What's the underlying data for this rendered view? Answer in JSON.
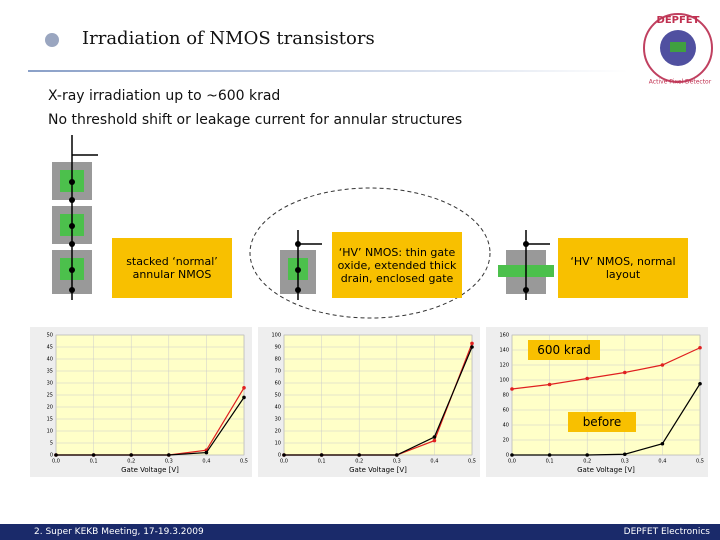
{
  "header": {
    "title": "Irradiation of NMOS transistors"
  },
  "logo": {
    "name": "DEPFET",
    "subtitle": "Active Pixel Detector"
  },
  "bullets": [
    "X-ray irradiation up to ~600 krad",
    "No threshold shift or leakage current for annular structures"
  ],
  "labels": [
    "stacked ‘normal’ annular NMOS",
    "‘HV’ NMOS: thin gate oxide, extended thick drain, enclosed gate",
    "‘HV’ NMOS, normal layout"
  ],
  "callouts": [
    "600 krad",
    "before"
  ],
  "footer": {
    "left": "2. Super KEKB Meeting, 17-19.3.2009",
    "right": "DEPFET Electronics"
  },
  "chart_data": [
    {
      "type": "line",
      "x_label": "Gate Voltage [V]",
      "x": [
        0,
        0.1,
        0.2,
        0.3,
        0.4,
        0.5
      ],
      "series": [
        {
          "color": "#e02020",
          "values": [
            0,
            0,
            0,
            0,
            2,
            28
          ]
        },
        {
          "color": "#000000",
          "values": [
            0,
            0,
            0,
            0,
            1,
            24
          ]
        }
      ],
      "xlim": [
        0,
        0.5
      ],
      "ylim": [
        0,
        50
      ],
      "xticks": [
        {
          "value": 0,
          "label": "0,0"
        },
        {
          "value": 0.1,
          "label": "0,1"
        },
        {
          "value": 0.2,
          "label": "0,2"
        },
        {
          "value": 0.3,
          "label": "0,3"
        },
        {
          "value": 0.4,
          "label": "0,4"
        },
        {
          "value": 0.5,
          "label": "0,5"
        }
      ],
      "yticks": [
        0,
        5,
        10,
        15,
        20,
        25,
        30,
        35,
        40,
        45,
        50
      ],
      "grid": true
    },
    {
      "type": "line",
      "x_label": "Gate Voltage [V]",
      "x": [
        0,
        0.1,
        0.2,
        0.3,
        0.4,
        0.5
      ],
      "series": [
        {
          "color": "#e02020",
          "values": [
            0,
            0,
            0,
            0,
            12,
            93
          ]
        },
        {
          "color": "#000000",
          "values": [
            0,
            0,
            0,
            0,
            15,
            90
          ]
        }
      ],
      "xlim": [
        0,
        0.5
      ],
      "ylim": [
        0,
        100
      ],
      "xticks": [
        {
          "value": 0,
          "label": "0,0"
        },
        {
          "value": 0.1,
          "label": "0,1"
        },
        {
          "value": 0.2,
          "label": "0,2"
        },
        {
          "value": 0.3,
          "label": "0,3"
        },
        {
          "value": 0.4,
          "label": "0,4"
        },
        {
          "value": 0.5,
          "label": "0,5"
        }
      ],
      "yticks": [
        0,
        10,
        20,
        30,
        40,
        50,
        60,
        70,
        80,
        90,
        100
      ],
      "grid": true
    },
    {
      "type": "line",
      "x_label": "Gate Voltage [V]",
      "x": [
        0,
        0.1,
        0.2,
        0.3,
        0.4,
        0.5
      ],
      "series": [
        {
          "color": "#e02020",
          "values": [
            88,
            94,
            102,
            110,
            120,
            143
          ]
        },
        {
          "color": "#000000",
          "values": [
            0,
            0,
            0,
            1,
            15,
            95
          ]
        }
      ],
      "xlim": [
        0,
        0.5
      ],
      "ylim": [
        0,
        160
      ],
      "xticks": [
        {
          "value": 0,
          "label": "0,0"
        },
        {
          "value": 0.1,
          "label": "0,1"
        },
        {
          "value": 0.2,
          "label": "0,2"
        },
        {
          "value": 0.3,
          "label": "0,3"
        },
        {
          "value": 0.4,
          "label": "0,4"
        },
        {
          "value": 0.5,
          "label": "0,5"
        }
      ],
      "yticks": [
        0,
        20,
        40,
        60,
        80,
        100,
        120,
        140,
        160
      ],
      "grid": true
    }
  ]
}
